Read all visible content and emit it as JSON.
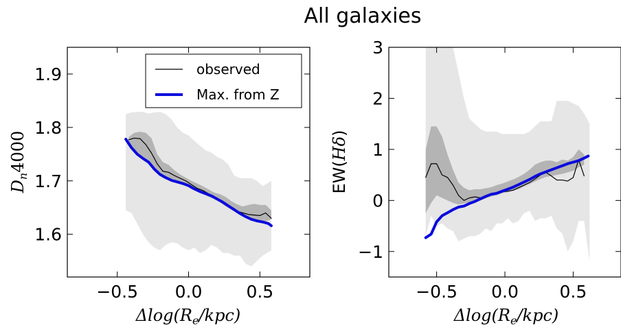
{
  "figure": {
    "title": "All galaxies"
  },
  "chart_data": [
    {
      "type": "line",
      "xlabel": "Δlog(R_e/kpc)",
      "ylabel": "D_n4000",
      "xlim": [
        -0.85,
        0.85
      ],
      "ylim": [
        1.52,
        1.95
      ],
      "xticks": [
        -0.5,
        0.0,
        0.5
      ],
      "xtick_labels": [
        "−0.5",
        "0.0",
        "0.5"
      ],
      "yticks": [
        1.6,
        1.7,
        1.8,
        1.9
      ],
      "ytick_labels": [
        "1.6",
        "1.7",
        "1.8",
        "1.9"
      ],
      "legend": {
        "position": "top-right",
        "entries": [
          "observed",
          "Max. from Z"
        ]
      },
      "series": [
        {
          "name": "observed",
          "color": "#000000",
          "x": [
            -0.42,
            -0.38,
            -0.34,
            -0.3,
            -0.26,
            -0.22,
            -0.18,
            -0.14,
            -0.1,
            -0.06,
            -0.02,
            0.02,
            0.06,
            0.1,
            0.14,
            0.18,
            0.22,
            0.26,
            0.3,
            0.34,
            0.38,
            0.42,
            0.46,
            0.5,
            0.54,
            0.58
          ],
          "y": [
            1.777,
            1.78,
            1.779,
            1.768,
            1.752,
            1.732,
            1.718,
            1.716,
            1.71,
            1.705,
            1.7,
            1.693,
            1.686,
            1.682,
            1.676,
            1.668,
            1.665,
            1.655,
            1.648,
            1.643,
            1.64,
            1.637,
            1.636,
            1.635,
            1.64,
            1.63
          ]
        },
        {
          "name": "Max. from Z",
          "color": "#0a0adc",
          "x": [
            -0.44,
            -0.4,
            -0.36,
            -0.32,
            -0.28,
            -0.24,
            -0.2,
            -0.16,
            -0.12,
            -0.08,
            -0.04,
            0.0,
            0.04,
            0.08,
            0.12,
            0.16,
            0.2,
            0.24,
            0.28,
            0.32,
            0.36,
            0.4,
            0.44,
            0.48,
            0.52,
            0.56,
            0.58
          ],
          "y": [
            1.778,
            1.762,
            1.75,
            1.742,
            1.735,
            1.722,
            1.712,
            1.706,
            1.701,
            1.698,
            1.695,
            1.691,
            1.685,
            1.68,
            1.676,
            1.672,
            1.666,
            1.66,
            1.653,
            1.646,
            1.639,
            1.633,
            1.628,
            1.625,
            1.623,
            1.62,
            1.616
          ]
        }
      ],
      "bands": [
        {
          "color": "#e6e6e6",
          "x": [
            -0.44,
            -0.4,
            -0.36,
            -0.32,
            -0.28,
            -0.24,
            -0.2,
            -0.16,
            -0.12,
            -0.08,
            -0.04,
            0.0,
            0.04,
            0.08,
            0.12,
            0.16,
            0.2,
            0.24,
            0.28,
            0.32,
            0.36,
            0.4,
            0.44,
            0.48,
            0.52,
            0.58
          ],
          "lower": [
            1.645,
            1.64,
            1.62,
            1.6,
            1.585,
            1.575,
            1.57,
            1.58,
            1.585,
            1.583,
            1.575,
            1.57,
            1.575,
            1.565,
            1.57,
            1.58,
            1.575,
            1.565,
            1.565,
            1.56,
            1.56,
            1.545,
            1.54,
            1.55,
            1.56,
            1.57
          ],
          "upper": [
            1.825,
            1.828,
            1.829,
            1.829,
            1.826,
            1.828,
            1.829,
            1.825,
            1.815,
            1.8,
            1.79,
            1.785,
            1.775,
            1.766,
            1.757,
            1.753,
            1.745,
            1.74,
            1.73,
            1.71,
            1.705,
            1.705,
            1.705,
            1.7,
            1.69,
            1.7
          ]
        },
        {
          "color": "#b4b4b4",
          "x": [
            -0.42,
            -0.38,
            -0.34,
            -0.3,
            -0.26,
            -0.22,
            -0.18,
            -0.14,
            -0.1,
            -0.06,
            -0.02,
            0.02,
            0.06,
            0.1,
            0.14,
            0.18,
            0.22,
            0.26,
            0.3,
            0.34,
            0.38,
            0.42,
            0.46,
            0.5,
            0.54,
            0.58
          ],
          "lower": [
            1.77,
            1.755,
            1.745,
            1.735,
            1.728,
            1.718,
            1.711,
            1.706,
            1.702,
            1.697,
            1.692,
            1.686,
            1.681,
            1.676,
            1.67,
            1.666,
            1.66,
            1.652,
            1.646,
            1.64,
            1.634,
            1.63,
            1.628,
            1.626,
            1.624,
            1.628
          ],
          "upper": [
            1.782,
            1.79,
            1.792,
            1.79,
            1.78,
            1.75,
            1.735,
            1.73,
            1.72,
            1.712,
            1.706,
            1.7,
            1.695,
            1.69,
            1.684,
            1.678,
            1.675,
            1.67,
            1.662,
            1.656,
            1.652,
            1.655,
            1.657,
            1.655,
            1.655,
            1.645
          ]
        }
      ]
    },
    {
      "type": "line",
      "xlabel": "Δlog(R_e/kpc)",
      "ylabel": "EW(Hδ)",
      "xlim": [
        -0.85,
        0.85
      ],
      "ylim": [
        -1.5,
        3.0
      ],
      "xticks": [
        -0.5,
        0.0,
        0.5
      ],
      "xtick_labels": [
        "−0.5",
        "0.0",
        "0.5"
      ],
      "yticks": [
        -1,
        0,
        1,
        2,
        3
      ],
      "ytick_labels": [
        "−1",
        "0",
        "1",
        "2",
        "3"
      ],
      "series": [
        {
          "name": "observed",
          "color": "#000000",
          "x": [
            -0.58,
            -0.54,
            -0.5,
            -0.46,
            -0.42,
            -0.38,
            -0.34,
            -0.3,
            -0.26,
            -0.22,
            -0.18,
            -0.14,
            -0.1,
            -0.06,
            -0.02,
            0.02,
            0.06,
            0.1,
            0.14,
            0.18,
            0.22,
            0.26,
            0.3,
            0.34,
            0.38,
            0.42,
            0.46,
            0.5,
            0.54,
            0.58
          ],
          "y": [
            0.45,
            0.72,
            0.72,
            0.5,
            0.45,
            0.3,
            0.1,
            0.0,
            0.05,
            0.07,
            0.05,
            0.08,
            0.12,
            0.15,
            0.17,
            0.18,
            0.2,
            0.25,
            0.3,
            0.35,
            0.42,
            0.5,
            0.55,
            0.48,
            0.4,
            0.4,
            0.38,
            0.45,
            0.8,
            0.48
          ]
        },
        {
          "name": "Max. from Z",
          "color": "#0a0adc",
          "x": [
            -0.58,
            -0.54,
            -0.5,
            -0.46,
            -0.42,
            -0.38,
            -0.34,
            -0.3,
            -0.26,
            -0.22,
            -0.18,
            -0.14,
            -0.1,
            -0.06,
            -0.02,
            0.02,
            0.06,
            0.1,
            0.14,
            0.18,
            0.22,
            0.26,
            0.3,
            0.34,
            0.38,
            0.42,
            0.46,
            0.5,
            0.54,
            0.58,
            0.61
          ],
          "y": [
            -0.73,
            -0.66,
            -0.42,
            -0.3,
            -0.24,
            -0.18,
            -0.13,
            -0.11,
            -0.06,
            -0.02,
            0.03,
            0.08,
            0.12,
            0.14,
            0.18,
            0.22,
            0.26,
            0.31,
            0.36,
            0.41,
            0.47,
            0.52,
            0.56,
            0.6,
            0.64,
            0.68,
            0.72,
            0.75,
            0.78,
            0.83,
            0.87
          ]
        }
      ],
      "bands": [
        {
          "color": "#e6e6e6",
          "x": [
            -0.58,
            -0.54,
            -0.5,
            -0.46,
            -0.42,
            -0.38,
            -0.34,
            -0.3,
            -0.26,
            -0.22,
            -0.18,
            -0.14,
            -0.1,
            -0.06,
            -0.02,
            0.02,
            0.06,
            0.1,
            0.14,
            0.18,
            0.22,
            0.26,
            0.3,
            0.34,
            0.38,
            0.42,
            0.46,
            0.5,
            0.54,
            0.58,
            0.62
          ],
          "lower": [
            -0.7,
            -0.3,
            -0.5,
            -0.45,
            -0.55,
            -0.6,
            -0.8,
            -0.75,
            -0.7,
            -0.7,
            -0.65,
            -0.55,
            -0.6,
            -0.45,
            -0.45,
            -0.35,
            -0.45,
            -0.4,
            -0.25,
            -0.2,
            -0.4,
            -0.35,
            -0.35,
            -0.3,
            -0.55,
            -0.65,
            -1.0,
            -0.8,
            -0.4,
            -0.4,
            -1.2
          ],
          "upper": [
            3.0,
            3.0,
            3.0,
            3.0,
            3.0,
            3.0,
            2.5,
            2.0,
            1.6,
            1.5,
            1.4,
            1.35,
            1.35,
            1.35,
            1.3,
            1.3,
            1.3,
            1.3,
            1.3,
            1.35,
            1.45,
            1.55,
            1.55,
            1.55,
            1.95,
            1.95,
            1.95,
            1.9,
            1.85,
            1.7,
            1.5
          ]
        },
        {
          "color": "#b4b4b4",
          "x": [
            -0.58,
            -0.54,
            -0.5,
            -0.46,
            -0.42,
            -0.38,
            -0.34,
            -0.3,
            -0.26,
            -0.22,
            -0.18,
            -0.14,
            -0.1,
            -0.06,
            -0.02,
            0.02,
            0.06,
            0.1,
            0.14,
            0.18,
            0.22,
            0.26,
            0.3,
            0.34,
            0.38,
            0.42,
            0.46,
            0.5,
            0.54,
            0.58
          ],
          "lower": [
            -0.25,
            -0.05,
            0.1,
            0.05,
            0.0,
            -0.05,
            -0.08,
            -0.06,
            -0.04,
            -0.02,
            0.0,
            0.04,
            0.08,
            0.1,
            0.14,
            0.16,
            0.19,
            0.22,
            0.27,
            0.32,
            0.37,
            0.42,
            0.46,
            0.48,
            0.5,
            0.52,
            0.55,
            0.58,
            0.65,
            0.7
          ],
          "upper": [
            1.0,
            1.45,
            1.45,
            1.25,
            0.9,
            0.6,
            0.35,
            0.25,
            0.2,
            0.22,
            0.22,
            0.24,
            0.26,
            0.3,
            0.33,
            0.37,
            0.41,
            0.46,
            0.52,
            0.6,
            0.7,
            0.75,
            0.78,
            0.78,
            0.75,
            0.8,
            0.78,
            0.85,
            1.0,
            0.9
          ]
        }
      ]
    }
  ]
}
